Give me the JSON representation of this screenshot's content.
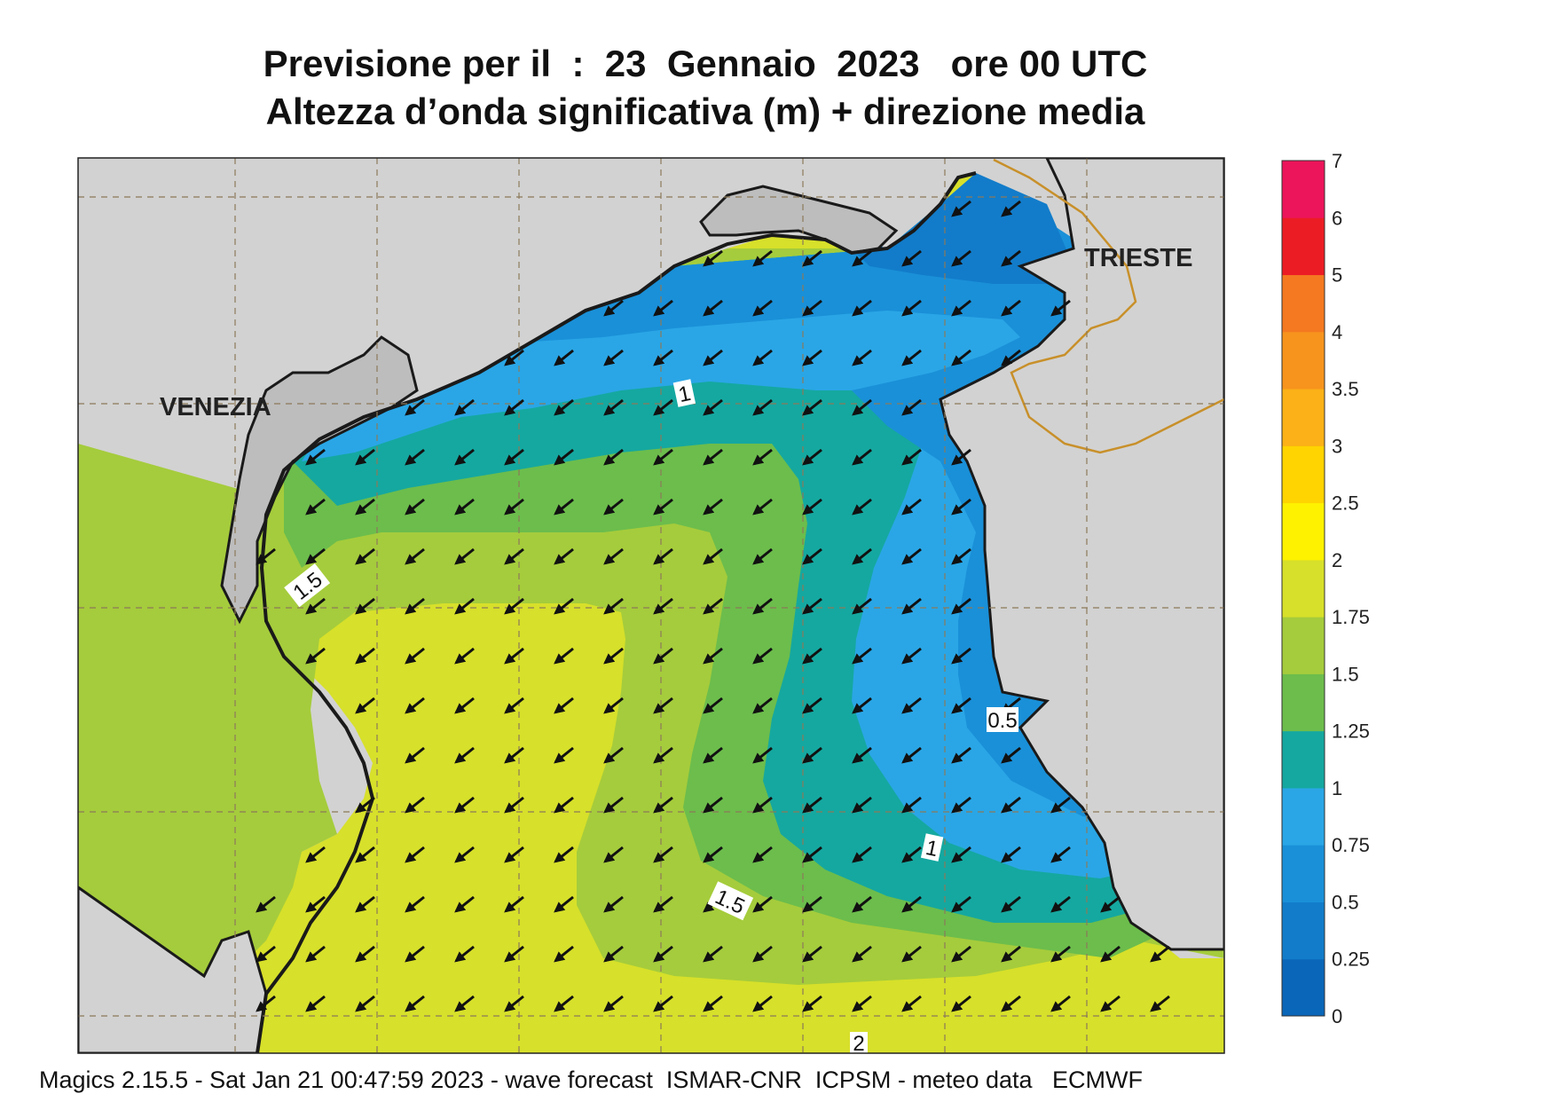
{
  "header": {
    "title_line1": "Previsione per il  :  23  Gennaio  2023   ore 00 UTC",
    "title_line2": "Altezza d’onda significativa (m) + direzione media"
  },
  "footer": {
    "text": "Magics 2.15.5 - Sat Jan 21 00:47:59 2023 - wave forecast  ISMAR-CNR  ICPSM - meteo data   ECMWF"
  },
  "map": {
    "cities": [
      {
        "name": "VENEZIA"
      },
      {
        "name": "TRIESTE"
      }
    ],
    "contour_labels": [
      "1",
      "1.5",
      "1",
      "1.5",
      "2",
      "0.5"
    ],
    "arrow_direction": "south-west",
    "land_color": "#d2d2d2",
    "coastline_color": "#1a1a1a",
    "border_color": "#c8902a"
  },
  "colorbar": {
    "levels": [
      "0",
      "0.25",
      "0.5",
      "0.75",
      "1",
      "1.25",
      "1.5",
      "1.75",
      "2",
      "2.5",
      "3",
      "3.5",
      "4",
      "5",
      "6",
      "7"
    ],
    "colors": [
      "#0a66b8",
      "#127cca",
      "#1a90d8",
      "#2aa6e6",
      "#15a8a0",
      "#6cbd4c",
      "#a5cc3c",
      "#d7e02a",
      "#fff200",
      "#ffd400",
      "#fbb117",
      "#f7941d",
      "#f47920",
      "#ec1c24",
      "#ec145a"
    ]
  }
}
